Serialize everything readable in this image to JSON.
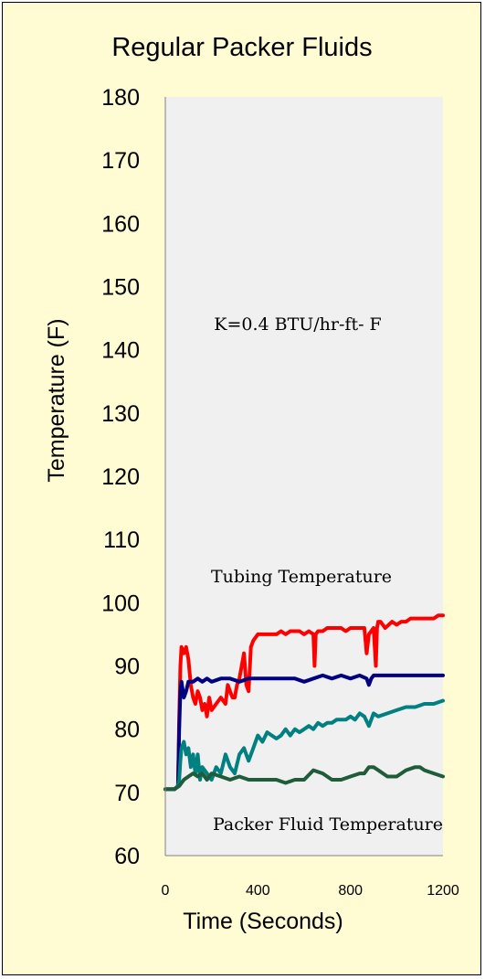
{
  "chart_data": {
    "type": "line",
    "title": "Regular Packer Fluids",
    "xlabel": "Time (Seconds)",
    "ylabel": "Temperature (F)",
    "xlim": [
      0,
      1200
    ],
    "ylim": [
      60,
      180
    ],
    "xticks": [
      "0",
      "400",
      "800",
      "1200"
    ],
    "yticks": [
      "60",
      "70",
      "80",
      "90",
      "100",
      "110",
      "120",
      "130",
      "140",
      "150",
      "160",
      "170",
      "180"
    ],
    "annotations": {
      "conductivity": "K=0.4 BTU/hr-ft- F",
      "tubing": "Tubing Temperature",
      "packer": "Packer Fluid Temperature"
    },
    "plot_background": "#f0f0f0",
    "page_background": "#fffbd2",
    "series": [
      {
        "color": "#ff0000",
        "x": [
          0,
          40,
          55,
          60,
          65,
          70,
          80,
          90,
          100,
          110,
          120,
          130,
          140,
          150,
          160,
          170,
          180,
          190,
          200,
          220,
          240,
          260,
          270,
          280,
          290,
          300,
          310,
          320,
          340,
          350,
          360,
          370,
          380,
          400,
          420,
          440,
          460,
          480,
          500,
          520,
          540,
          560,
          580,
          600,
          620,
          640,
          645,
          650,
          660,
          680,
          700,
          720,
          740,
          760,
          780,
          800,
          820,
          840,
          860,
          870,
          880,
          900,
          910,
          915,
          920,
          930,
          950,
          980,
          1000,
          1020,
          1040,
          1060,
          1080,
          1100,
          1120,
          1140,
          1160,
          1180,
          1200
        ],
        "y": [
          70.5,
          70.5,
          71,
          82,
          90,
          93,
          92,
          93,
          91,
          87,
          85,
          84,
          86,
          85,
          83,
          84,
          82,
          85,
          83,
          84,
          85,
          84,
          87,
          86,
          85,
          85,
          87,
          88,
          92,
          87,
          86,
          93,
          94,
          95,
          95,
          95,
          95,
          95,
          95.5,
          95,
          95.5,
          95.5,
          95.5,
          95,
          95.5,
          95,
          90,
          95,
          95.5,
          95.5,
          96,
          96,
          96,
          96,
          95.5,
          96,
          96,
          96,
          96,
          92,
          95,
          96,
          90,
          96,
          97,
          97,
          96,
          97,
          96.5,
          97,
          97,
          97.5,
          97.5,
          97.5,
          97.5,
          97.5,
          97.5,
          98,
          98
        ]
      },
      {
        "color": "#000080",
        "x": [
          0,
          40,
          55,
          60,
          65,
          70,
          80,
          90,
          100,
          120,
          140,
          160,
          180,
          200,
          240,
          280,
          320,
          360,
          400,
          440,
          480,
          520,
          560,
          600,
          640,
          680,
          720,
          760,
          800,
          840,
          870,
          880,
          890,
          900,
          920,
          960,
          1000,
          1040,
          1080,
          1120,
          1160,
          1200
        ],
        "y": [
          70.5,
          70.5,
          71,
          80,
          86,
          87.5,
          85,
          86,
          87.5,
          87.5,
          88,
          87.5,
          88,
          87.5,
          88,
          88,
          87.5,
          88,
          88,
          88,
          88,
          88,
          88,
          87.5,
          88,
          88.5,
          88,
          88.5,
          88,
          88.5,
          88,
          87,
          88,
          88.5,
          88.5,
          88.5,
          88.5,
          88.5,
          88.5,
          88.5,
          88.5,
          88.5
        ]
      },
      {
        "color": "#008080",
        "x": [
          0,
          40,
          55,
          60,
          65,
          70,
          80,
          90,
          100,
          110,
          120,
          130,
          140,
          150,
          160,
          180,
          200,
          220,
          240,
          260,
          280,
          300,
          320,
          340,
          360,
          380,
          400,
          420,
          440,
          460,
          480,
          500,
          520,
          540,
          560,
          580,
          600,
          620,
          640,
          660,
          680,
          700,
          720,
          740,
          760,
          780,
          800,
          820,
          840,
          860,
          880,
          900,
          920,
          960,
          1000,
          1040,
          1080,
          1120,
          1160,
          1200
        ],
        "y": [
          70.5,
          70.5,
          71,
          72,
          75,
          77,
          78,
          76,
          77,
          74,
          76,
          73,
          76,
          72,
          74,
          73,
          72,
          74,
          73,
          76,
          74,
          73,
          76,
          77,
          75,
          77,
          79,
          78,
          79.5,
          79,
          78.5,
          79,
          80,
          79,
          80,
          79.5,
          80,
          80.5,
          80,
          81,
          80.5,
          81,
          81,
          81.5,
          81.5,
          81.5,
          82,
          81.5,
          82.5,
          82,
          80.5,
          82.5,
          82,
          82.5,
          83,
          83.5,
          83.5,
          84,
          84,
          84.5
        ]
      },
      {
        "color": "#1e5c3a",
        "x": [
          0,
          40,
          60,
          80,
          100,
          120,
          140,
          160,
          180,
          200,
          240,
          280,
          320,
          360,
          400,
          440,
          480,
          520,
          560,
          600,
          640,
          680,
          720,
          760,
          800,
          840,
          860,
          880,
          900,
          920,
          960,
          1000,
          1040,
          1080,
          1100,
          1120,
          1160,
          1200
        ],
        "y": [
          70.5,
          70.5,
          71,
          72,
          72.5,
          73,
          72.5,
          73,
          72,
          73,
          72.5,
          72,
          72.5,
          72,
          72,
          72,
          72,
          71.5,
          72,
          72,
          73.5,
          73,
          72,
          72,
          72.5,
          73,
          73,
          74,
          74,
          73.5,
          72.5,
          72.5,
          73.5,
          74,
          74,
          73.5,
          73,
          72.5
        ]
      }
    ]
  }
}
